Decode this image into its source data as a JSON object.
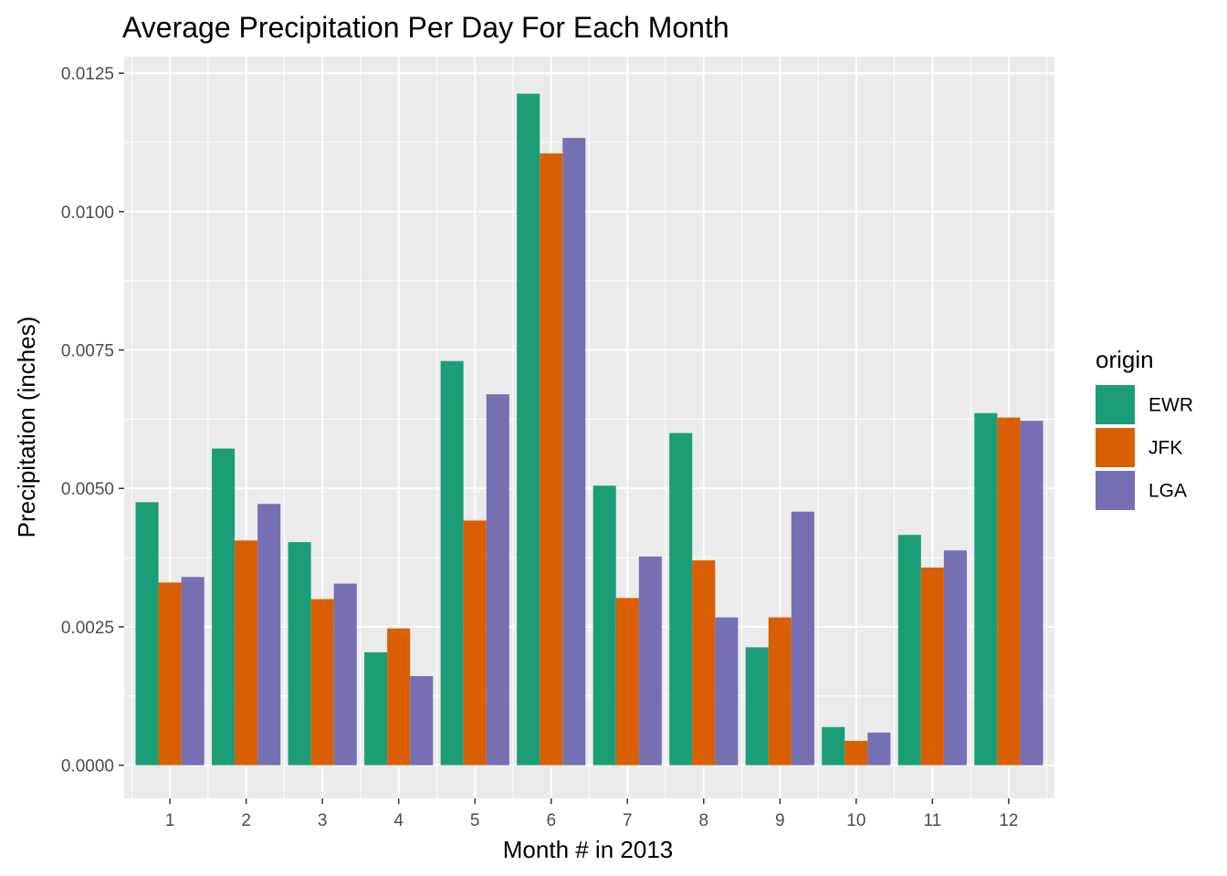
{
  "chart_data": {
    "type": "bar",
    "title": "Average Precipitation Per Day For Each Month",
    "xlabel": "Month # in 2013",
    "ylabel": "Precipitation (inches)",
    "categories": [
      "1",
      "2",
      "3",
      "4",
      "5",
      "6",
      "7",
      "8",
      "9",
      "10",
      "11",
      "12"
    ],
    "y_ticks": [
      "0.0000",
      "0.0025",
      "0.0050",
      "0.0075",
      "0.0100",
      "0.0125"
    ],
    "ylim": [
      -0.0006,
      0.0128
    ],
    "grid": true,
    "legend": {
      "title": "origin",
      "position": "right"
    },
    "series": [
      {
        "name": "EWR",
        "color": "#1b9e77",
        "values": [
          0.00475,
          0.00572,
          0.00403,
          0.00204,
          0.0073,
          0.01213,
          0.00505,
          0.006,
          0.00213,
          0.00069,
          0.00416,
          0.00636
        ]
      },
      {
        "name": "JFK",
        "color": "#d95f02",
        "values": [
          0.0033,
          0.00406,
          0.003,
          0.00247,
          0.00442,
          0.01105,
          0.00302,
          0.0037,
          0.00267,
          0.00044,
          0.00357,
          0.00628
        ]
      },
      {
        "name": "LGA",
        "color": "#7570b3",
        "values": [
          0.0034,
          0.00472,
          0.00328,
          0.00161,
          0.0067,
          0.01133,
          0.00377,
          0.00267,
          0.00458,
          0.00059,
          0.00388,
          0.00622
        ]
      }
    ]
  }
}
